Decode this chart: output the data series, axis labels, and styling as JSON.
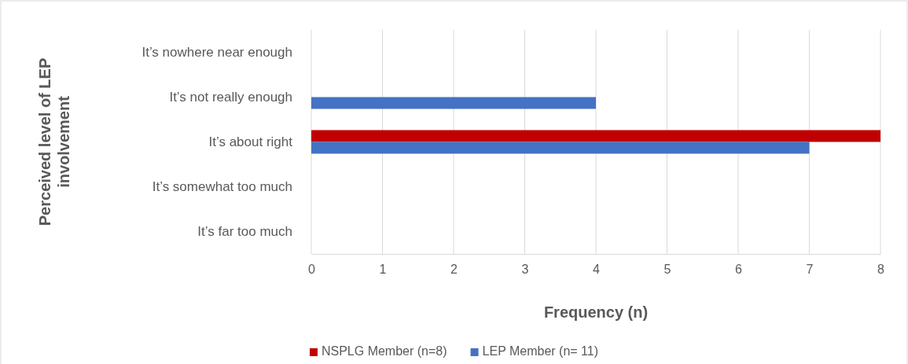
{
  "chart_data": {
    "type": "bar",
    "orientation": "horizontal",
    "xlabel": "Frequency (n)",
    "ylabel": "Perceived level of LEP involvement",
    "categories": [
      "It’s nowhere near enough",
      "It’s not really enough",
      "It’s about right",
      "It’s somewhat too much",
      "It’s far too much"
    ],
    "series": [
      {
        "name": "NSPLG Member (n=8)",
        "color": "#c00000",
        "values": [
          0,
          0,
          8,
          0,
          0
        ]
      },
      {
        "name": "LEP Member (n= 11)",
        "color": "#4472c4",
        "values": [
          0,
          4,
          7,
          0,
          0
        ]
      }
    ],
    "xlim": [
      0,
      8
    ],
    "xticks": [
      0,
      1,
      2,
      3,
      4,
      5,
      6,
      7,
      8
    ],
    "grid": "x",
    "legend": "bottom"
  }
}
